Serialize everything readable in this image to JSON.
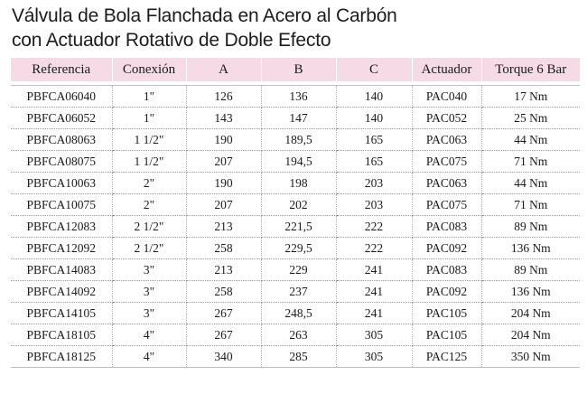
{
  "title": {
    "line1": "Válvula de Bola Flanchada en Acero al Carbón",
    "line2": "con Actuador Rotativo de Doble Efecto"
  },
  "table": {
    "headers": [
      "Referencia",
      "Conexión",
      "A",
      "B",
      "C",
      "Actuador",
      "Torque 6 Bar"
    ],
    "rows": [
      [
        "PBFCA06040",
        "1\"",
        "126",
        "136",
        "140",
        "PAC040",
        "17 Nm"
      ],
      [
        "PBFCA06052",
        "1\"",
        "143",
        "147",
        "140",
        "PAC052",
        "25 Nm"
      ],
      [
        "PBFCA08063",
        "1 1/2\"",
        "190",
        "189,5",
        "165",
        "PAC063",
        "44 Nm"
      ],
      [
        "PBFCA08075",
        "1 1/2\"",
        "207",
        "194,5",
        "165",
        "PAC075",
        "71 Nm"
      ],
      [
        "PBFCA10063",
        "2\"",
        "190",
        "198",
        "203",
        "PAC063",
        "44 Nm"
      ],
      [
        "PBFCA10075",
        "2\"",
        "207",
        "202",
        "203",
        "PAC075",
        "71 Nm"
      ],
      [
        "PBFCA12083",
        "2 1/2\"",
        "213",
        "221,5",
        "222",
        "PAC083",
        "89 Nm"
      ],
      [
        "PBFCA12092",
        "2 1/2\"",
        "258",
        "229,5",
        "222",
        "PAC092",
        "136 Nm"
      ],
      [
        "PBFCA14083",
        "3\"",
        "213",
        "229",
        "241",
        "PAC083",
        "89 Nm"
      ],
      [
        "PBFCA14092",
        "3\"",
        "258",
        "237",
        "241",
        "PAC092",
        "136 Nm"
      ],
      [
        "PBFCA14105",
        "3\"",
        "267",
        "248,5",
        "241",
        "PAC105",
        "204 Nm"
      ],
      [
        "PBFCA18105",
        "4\"",
        "267",
        "263",
        "305",
        "PAC105",
        "204 Nm"
      ],
      [
        "PBFCA18125",
        "4\"",
        "340",
        "285",
        "305",
        "PAC125",
        "350 Nm"
      ]
    ]
  },
  "colors": {
    "header_bg": "#f6dbe6",
    "text": "#1a1a1a",
    "rule": "#9a9a9a"
  }
}
